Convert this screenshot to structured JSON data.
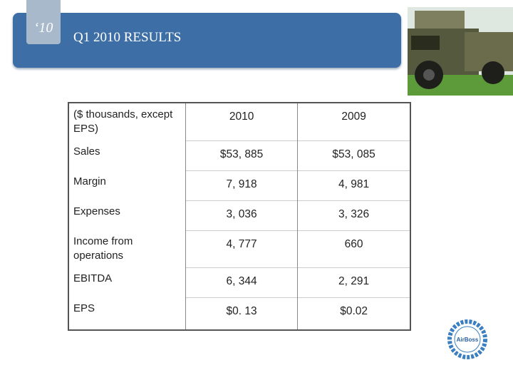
{
  "header": {
    "badge": "‘10",
    "title": "Q1 2010 RESULTS"
  },
  "table": {
    "columns": [
      "($ thousands, except EPS)",
      "2010",
      "2009"
    ],
    "rows": [
      [
        "Sales",
        "$53, 885",
        "$53, 085"
      ],
      [
        "Margin",
        "7, 918",
        "4, 981"
      ],
      [
        "Expenses",
        "3, 036",
        "3, 326"
      ],
      [
        "Income from operations",
        "4, 777",
        "660"
      ],
      [
        "EBITDA",
        "6, 344",
        "2, 291"
      ],
      [
        "EPS",
        "$0. 13",
        "$0.02"
      ]
    ]
  },
  "logo": {
    "text": "AirBoss"
  }
}
